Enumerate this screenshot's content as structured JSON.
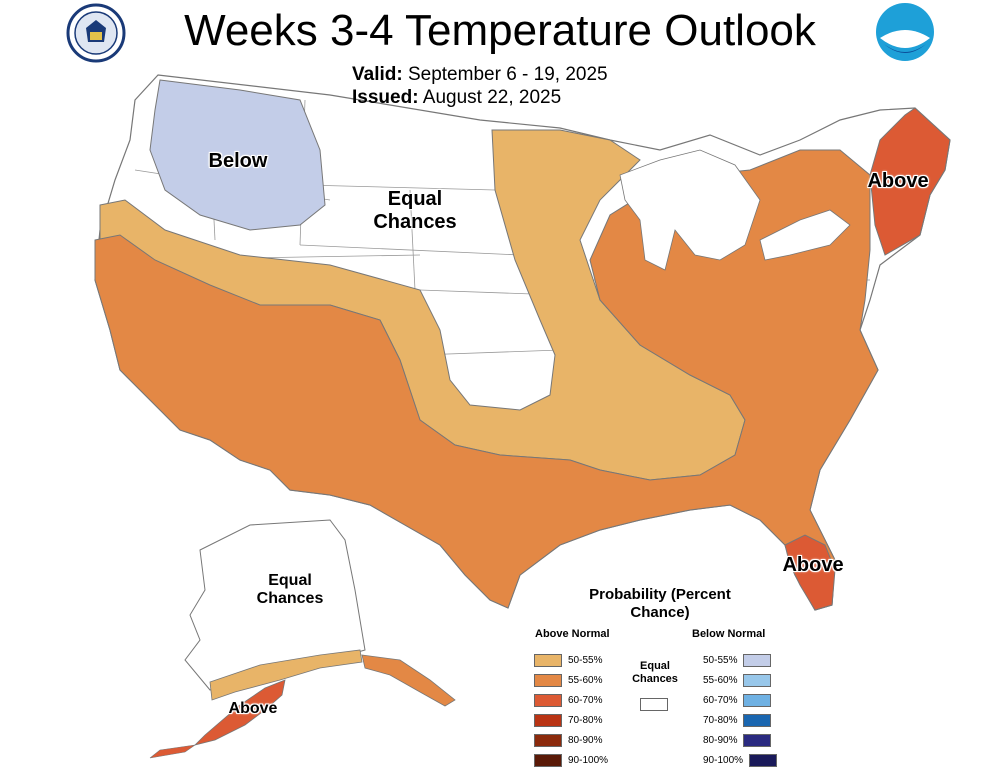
{
  "title": "Weeks 3-4 Temperature Outlook",
  "valid": {
    "label": "Valid:",
    "value": "September 6 - 19, 2025"
  },
  "issued": {
    "label": "Issued:",
    "value": "August 22, 2025"
  },
  "regions": {
    "below_nw": "Below",
    "equal_central": "Equal Chances",
    "above_ne": "Above",
    "above_fl": "Above",
    "equal_alaska": "Equal Chances",
    "above_alaska": "Above"
  },
  "legend": {
    "title": "Probability (Percent Chance)",
    "above_header": "Above Normal",
    "below_header": "Below Normal",
    "equal_label": "Equal Chances",
    "above": [
      {
        "label": "50-55%",
        "color": "#e8b468"
      },
      {
        "label": "55-60%",
        "color": "#e38845"
      },
      {
        "label": "60-70%",
        "color": "#dc5a34"
      },
      {
        "label": "70-80%",
        "color": "#b93414"
      },
      {
        "label": "80-90%",
        "color": "#8b2a0c"
      },
      {
        "label": "90-100%",
        "color": "#5a1a08"
      }
    ],
    "below": [
      {
        "label": "50-55%",
        "color": "#c3cde8"
      },
      {
        "label": "55-60%",
        "color": "#98c7ea"
      },
      {
        "label": "60-70%",
        "color": "#6fb1e3"
      },
      {
        "label": "70-80%",
        "color": "#1a66b0"
      },
      {
        "label": "80-90%",
        "color": "#2a2a80"
      },
      {
        "label": "90-100%",
        "color": "#1a1a5a"
      }
    ]
  }
}
